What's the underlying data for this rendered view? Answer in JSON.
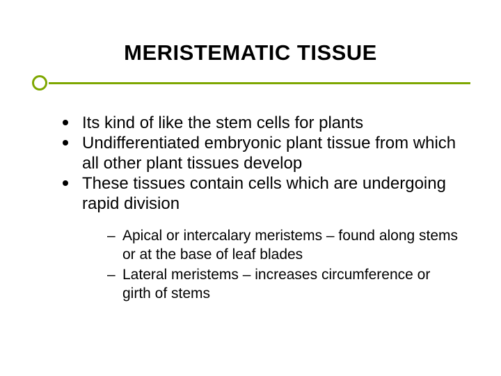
{
  "slide": {
    "title": "MERISTEMATIC TISSUE",
    "title_fontsize": 31,
    "title_color": "#000000",
    "accent_color": "#7ea700",
    "divider_color": "#7ea700",
    "background_color": "#ffffff",
    "body_fontsize": 24,
    "sub_fontsize": 21,
    "bullet_color": "#000000",
    "bullets": [
      {
        "text": "Its kind of like the stem cells for plants"
      },
      {
        "text": "Undifferentiated embryonic plant tissue from which all other plant tissues develop"
      },
      {
        "text": "These tissues contain cells which are undergoing rapid division"
      }
    ],
    "sub_bullets": [
      {
        "text": "Apical or intercalary meristems – found along stems or at the base of leaf blades"
      },
      {
        "text": "Lateral meristems – increases circumference or girth of stems"
      }
    ]
  }
}
